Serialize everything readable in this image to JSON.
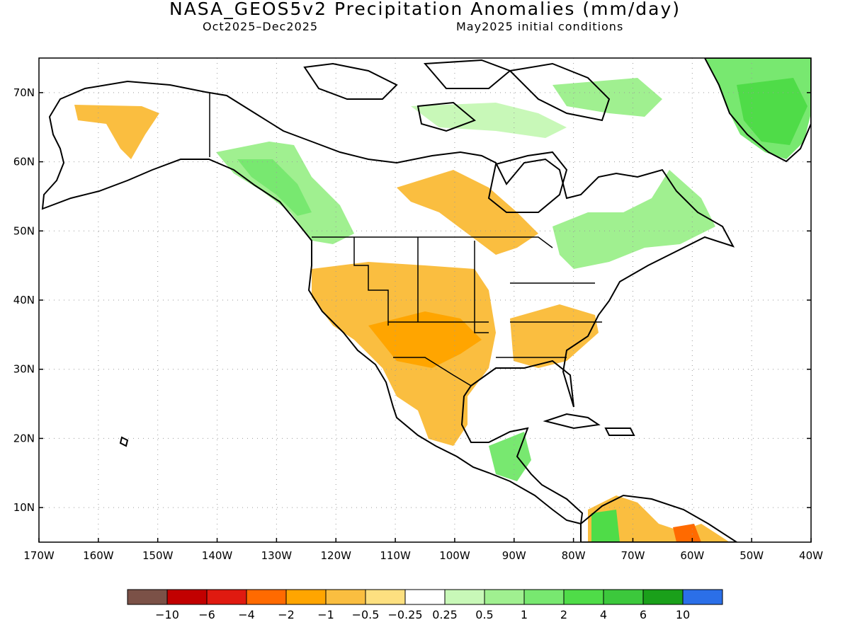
{
  "title": "NASA_GEOS5v2 Precipitation Anomalies (mm/day)",
  "subtitle_left": "Oct2025–Dec2025",
  "subtitle_right": "May2025 initial conditions",
  "map": {
    "lon_range": [
      -170,
      -40
    ],
    "lat_range": [
      5,
      75
    ],
    "x_ticks": [
      "170W",
      "160W",
      "150W",
      "140W",
      "130W",
      "120W",
      "110W",
      "100W",
      "90W",
      "80W",
      "70W",
      "60W",
      "50W",
      "40W"
    ],
    "y_ticks": [
      "10N",
      "20N",
      "30N",
      "40N",
      "50N",
      "60N",
      "70N"
    ],
    "grid": true,
    "land_outline_color": "#000000"
  },
  "colorbar": {
    "colors": [
      "#7b5147",
      "#c20000",
      "#e01a10",
      "#ff6a00",
      "#ffa500",
      "#fabe40",
      "#fde080",
      "#ffffff",
      "#c8f8b8",
      "#a0f090",
      "#78e870",
      "#4fdc48",
      "#3cc83c",
      "#1aa01a",
      "#2b6fe8"
    ],
    "labels": [
      "−10",
      "−6",
      "−4",
      "−2",
      "−1",
      "−0.5",
      "−0.25",
      "0.25",
      "0.5",
      "1",
      "2",
      "4",
      "6",
      "10"
    ]
  }
}
